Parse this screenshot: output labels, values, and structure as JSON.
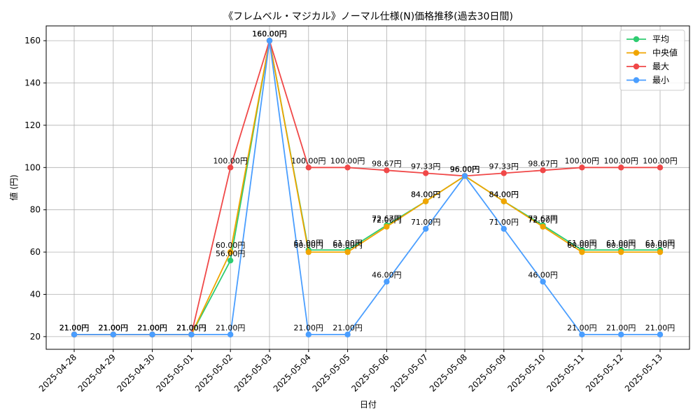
{
  "chart_data": {
    "type": "line",
    "title": "《フレムベル・マジカル》ノーマル仕様(N)価格推移(過去30日間)",
    "xlabel": "日付",
    "ylabel": "値 (円)",
    "ylim": [
      14,
      167
    ],
    "yticks": [
      20,
      40,
      60,
      80,
      100,
      120,
      140,
      160
    ],
    "grid": true,
    "legend_position": "top-right",
    "label_suffix": "円",
    "categories": [
      "2025-04-28",
      "2025-04-29",
      "2025-04-30",
      "2025-05-01",
      "2025-05-02",
      "2025-05-03",
      "2025-05-04",
      "2025-05-05",
      "2025-05-06",
      "2025-05-07",
      "2025-05-08",
      "2025-05-09",
      "2025-05-10",
      "2025-05-11",
      "2025-05-12",
      "2025-05-13"
    ],
    "series": [
      {
        "name": "平均",
        "color": "#2ecc71",
        "values": [
          21,
          21,
          21,
          21,
          56,
          160,
          61,
          61,
          72.67,
          84,
          96,
          84,
          72.67,
          61,
          61,
          61
        ]
      },
      {
        "name": "中央値",
        "color": "#f0a500",
        "values": [
          21,
          21,
          21,
          21,
          60,
          160,
          60,
          60,
          72,
          84,
          96,
          84,
          72,
          60,
          60,
          60
        ]
      },
      {
        "name": "最大",
        "color": "#f04848",
        "values": [
          21,
          21,
          21,
          21,
          100,
          160,
          100,
          100,
          98.67,
          97.33,
          96,
          97.33,
          98.67,
          100,
          100,
          100
        ]
      },
      {
        "name": "最小",
        "color": "#4a9eff",
        "values": [
          21,
          21,
          21,
          21,
          21,
          160,
          21,
          21,
          46,
          71,
          96,
          71,
          46,
          21,
          21,
          21
        ]
      }
    ]
  }
}
